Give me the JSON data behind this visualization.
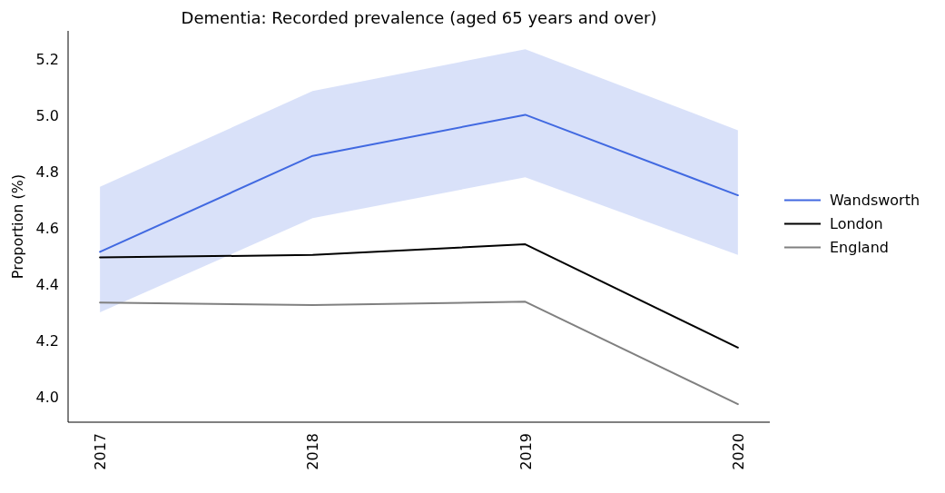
{
  "chart_data": {
    "type": "line",
    "title": "Dementia: Recorded prevalence (aged 65 years and over)",
    "ylabel": "Proportion (%)",
    "categories": [
      "2017",
      "2018",
      "2019",
      "2020"
    ],
    "ylim": [
      3.91,
      5.3
    ],
    "yticks": [
      {
        "value": 4.0,
        "label": "4.0"
      },
      {
        "value": 4.2,
        "label": "4.2"
      },
      {
        "value": 4.4,
        "label": "4.4"
      },
      {
        "value": 4.6,
        "label": "4.6"
      },
      {
        "value": 4.8,
        "label": "4.8"
      },
      {
        "value": 5.0,
        "label": "5.0"
      },
      {
        "value": 5.2,
        "label": "5.2"
      }
    ],
    "grid": false,
    "legend": "right",
    "marker": "none",
    "line_style": "solid",
    "series": [
      {
        "name": "Wandsworth",
        "color": "#4169e1",
        "values": [
          4.515,
          4.856,
          5.002,
          4.716
        ],
        "lower": [
          4.3,
          4.635,
          4.78,
          4.504
        ],
        "upper": [
          4.746,
          5.086,
          5.235,
          4.947
        ]
      },
      {
        "name": "London",
        "color": "#000000",
        "values": [
          4.495,
          4.504,
          4.542,
          4.175
        ]
      },
      {
        "name": "England",
        "color": "#808080",
        "values": [
          4.335,
          4.326,
          4.338,
          3.974
        ]
      }
    ]
  }
}
